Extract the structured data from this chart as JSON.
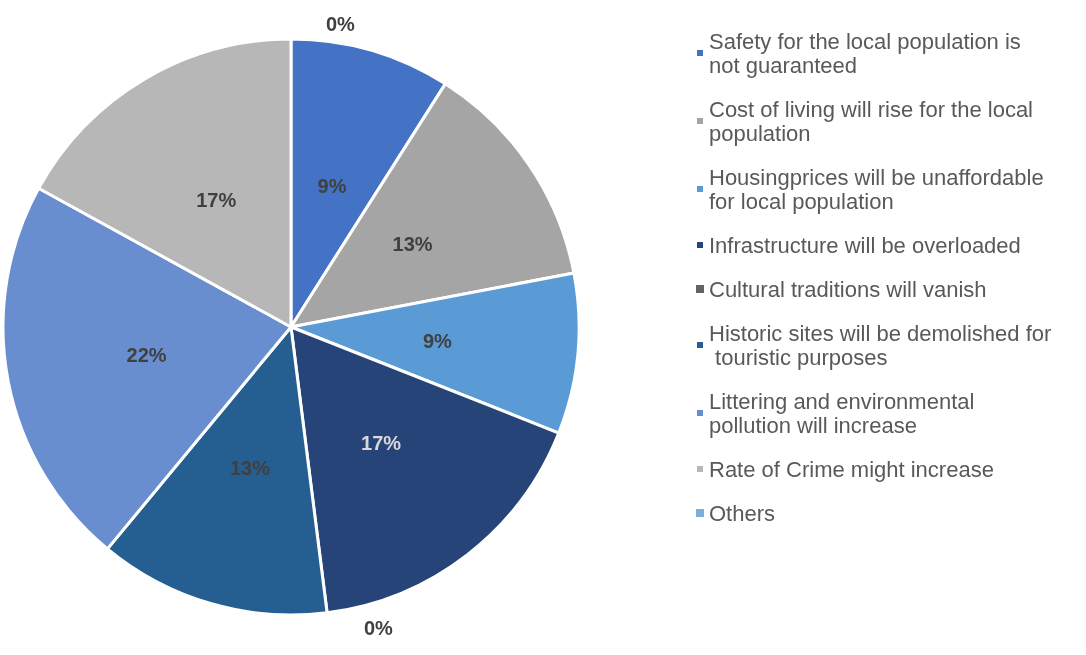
{
  "chart_data": {
    "type": "pie",
    "categories": [
      "Safety for the local population is not guaranteed",
      "Cost of living will rise for the local population",
      "Housingprices will be unaffordable for local population",
      "Infrastructure will be overloaded",
      "Cultural traditions will vanish",
      "Historic sites will be demolished for touristic purposes",
      "Littering and environmental pollution will increase",
      "Rate of Crime might increase",
      "Others"
    ],
    "values": [
      9,
      13,
      9,
      17,
      0,
      13,
      22,
      17,
      0
    ],
    "value_labels": [
      "9%",
      "13%",
      "9%",
      "17%",
      "0%",
      "13%",
      "22%",
      "17%",
      "0%"
    ],
    "colors": [
      "#4472c4",
      "#a5a5a5",
      "#5b9bd5",
      "#264478",
      "#636363",
      "#255e91",
      "#698ed0",
      "#b7b7b7",
      "#7cafdd"
    ],
    "legend": "right"
  }
}
